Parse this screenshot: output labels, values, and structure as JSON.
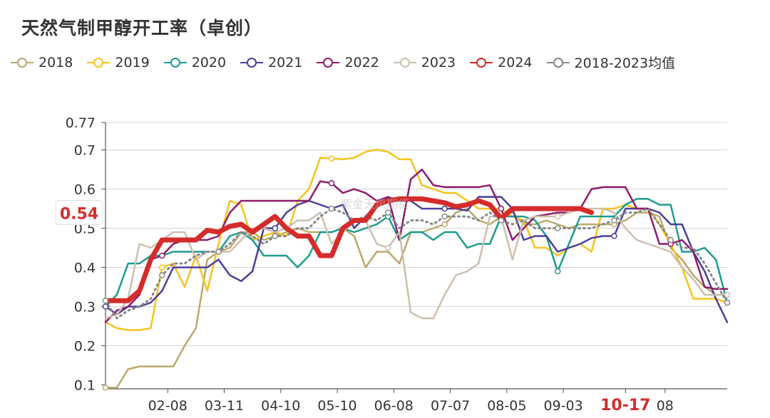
{
  "title": "天然气制甲醇开工率（卓创）",
  "chart_data": {
    "type": "line",
    "title": "天然气制甲醇开工率（卓创）",
    "ylim": [
      0.09,
      0.77
    ],
    "y_ticks": [
      0.1,
      0.2,
      0.3,
      0.4,
      0.5,
      0.6,
      0.7,
      0.77
    ],
    "y_tick_labels": [
      "0.1",
      "0.2",
      "0.3",
      "0.4",
      "0.5",
      "0.6",
      "0.7",
      "0.77"
    ],
    "x_tick_labels": [
      "02-08",
      "03-11",
      "04-10",
      "05-10",
      "06-08",
      "07-07",
      "08-05",
      "09-03",
      "10-17",
      "08"
    ],
    "x_tick_positions": [
      5.5,
      10.5,
      15.5,
      20.5,
      25.5,
      30.5,
      35.5,
      40.5,
      46,
      49.5
    ],
    "x_highlight_index": 8,
    "x_count": 56,
    "tooltip_value": "0.54",
    "series": [
      {
        "name": "2018",
        "color": "#b9a96c",
        "width": 2.5,
        "values": [
          0.093,
          0.093,
          0.14,
          0.147,
          0.147,
          0.147,
          0.147,
          0.2,
          0.245,
          0.42,
          0.44,
          0.45,
          0.49,
          0.49,
          0.47,
          0.48,
          0.49,
          0.5,
          0.49,
          0.49,
          0.49,
          0.5,
          0.48,
          0.4,
          0.44,
          0.44,
          0.41,
          0.49,
          0.49,
          0.5,
          0.51,
          0.54,
          0.55,
          0.52,
          0.51,
          0.53,
          0.54,
          0.51,
          0.51,
          0.52,
          0.51,
          0.5,
          0.51,
          0.51,
          0.51,
          0.51,
          0.52,
          0.54,
          0.54,
          0.53,
          0.45,
          0.42,
          0.38,
          0.35,
          0.33,
          0.33
        ]
      },
      {
        "name": "2019",
        "color": "#f6c21d",
        "width": 2.5,
        "values": [
          0.26,
          0.245,
          0.24,
          0.24,
          0.245,
          0.4,
          0.41,
          0.35,
          0.43,
          0.34,
          0.46,
          0.57,
          0.56,
          0.47,
          0.48,
          0.49,
          0.48,
          0.57,
          0.6,
          0.68,
          0.678,
          0.676,
          0.68,
          0.695,
          0.701,
          0.695,
          0.676,
          0.676,
          0.61,
          0.6,
          0.59,
          0.59,
          0.57,
          0.55,
          0.55,
          0.55,
          0.53,
          0.52,
          0.45,
          0.45,
          0.43,
          0.45,
          0.46,
          0.44,
          0.55,
          0.55,
          0.56,
          0.55,
          0.55,
          0.51,
          0.46,
          0.4,
          0.32,
          0.32,
          0.32,
          0.31
        ]
      },
      {
        "name": "2020",
        "color": "#1c9b8f",
        "width": 2.5,
        "values": [
          0.3,
          0.33,
          0.41,
          0.41,
          0.43,
          0.43,
          0.44,
          0.44,
          0.44,
          0.44,
          0.44,
          0.48,
          0.49,
          0.47,
          0.43,
          0.43,
          0.43,
          0.4,
          0.43,
          0.49,
          0.49,
          0.5,
          0.49,
          0.5,
          0.51,
          0.53,
          0.47,
          0.49,
          0.49,
          0.47,
          0.49,
          0.49,
          0.45,
          0.46,
          0.46,
          0.53,
          0.53,
          0.53,
          0.52,
          0.48,
          0.39,
          0.46,
          0.53,
          0.53,
          0.53,
          0.53,
          0.56,
          0.575,
          0.575,
          0.56,
          0.56,
          0.44,
          0.44,
          0.45,
          0.42,
          0.31
        ]
      },
      {
        "name": "2021",
        "color": "#4b3f9a",
        "width": 2.5,
        "values": [
          0.3,
          0.28,
          0.3,
          0.3,
          0.31,
          0.34,
          0.4,
          0.4,
          0.4,
          0.4,
          0.42,
          0.38,
          0.365,
          0.39,
          0.5,
          0.5,
          0.54,
          0.56,
          0.57,
          0.56,
          0.55,
          0.56,
          0.5,
          0.53,
          0.56,
          0.58,
          0.57,
          0.57,
          0.55,
          0.55,
          0.55,
          0.55,
          0.545,
          0.58,
          0.58,
          0.58,
          0.55,
          0.47,
          0.48,
          0.48,
          0.44,
          0.45,
          0.46,
          0.475,
          0.48,
          0.48,
          0.55,
          0.55,
          0.55,
          0.54,
          0.51,
          0.51,
          0.44,
          0.39,
          0.32,
          0.26
        ]
      },
      {
        "name": "2022",
        "color": "#8e1c6b",
        "width": 2.5,
        "values": [
          0.26,
          0.29,
          0.3,
          0.33,
          0.42,
          0.43,
          0.46,
          0.47,
          0.47,
          0.47,
          0.48,
          0.54,
          0.57,
          0.57,
          0.57,
          0.57,
          0.57,
          0.57,
          0.57,
          0.62,
          0.615,
          0.59,
          0.6,
          0.59,
          0.57,
          0.58,
          0.47,
          0.625,
          0.65,
          0.61,
          0.605,
          0.605,
          0.605,
          0.605,
          0.61,
          0.55,
          0.47,
          0.5,
          0.53,
          0.535,
          0.54,
          0.54,
          0.55,
          0.6,
          0.605,
          0.605,
          0.605,
          0.55,
          0.55,
          0.46,
          0.46,
          0.47,
          0.44,
          0.35,
          0.345,
          0.345
        ]
      },
      {
        "name": "2023",
        "color": "#cdbfad",
        "width": 2.5,
        "values": [
          0.27,
          0.28,
          0.32,
          0.46,
          0.45,
          0.47,
          0.49,
          0.49,
          0.42,
          0.44,
          0.44,
          0.44,
          0.47,
          0.5,
          0.5,
          0.49,
          0.5,
          0.52,
          0.52,
          0.54,
          0.46,
          0.49,
          0.52,
          0.52,
          0.46,
          0.45,
          0.49,
          0.285,
          0.27,
          0.27,
          0.33,
          0.38,
          0.39,
          0.41,
          0.53,
          0.53,
          0.42,
          0.52,
          0.53,
          0.53,
          0.53,
          0.54,
          0.55,
          0.55,
          0.55,
          0.54,
          0.5,
          0.47,
          0.46,
          0.45,
          0.44,
          0.4,
          0.37,
          0.33,
          0.33,
          0.33
        ]
      },
      {
        "name": "2024",
        "color": "#d62b2b",
        "width": 7,
        "values": [
          0.315,
          0.315,
          0.315,
          0.34,
          0.42,
          0.47,
          0.47,
          0.47,
          0.47,
          0.495,
          0.49,
          0.505,
          0.51,
          0.49,
          0.51,
          0.53,
          0.5,
          0.48,
          0.48,
          0.43,
          0.43,
          0.5,
          0.52,
          0.52,
          0.56,
          0.57,
          0.575,
          0.575,
          0.575,
          0.57,
          0.565,
          0.555,
          0.56,
          0.57,
          0.56,
          0.525,
          0.55,
          0.55,
          0.55,
          0.55,
          0.55,
          0.55,
          0.55,
          0.54
        ]
      },
      {
        "name": "2018-2023均值",
        "color": "#888888",
        "width": 3,
        "dash": "2 5",
        "values": [
          0.315,
          0.27,
          0.29,
          0.3,
          0.32,
          0.38,
          0.41,
          0.41,
          0.43,
          0.44,
          0.44,
          0.46,
          0.49,
          0.48,
          0.46,
          0.48,
          0.48,
          0.5,
          0.5,
          0.53,
          0.55,
          0.54,
          0.52,
          0.53,
          0.52,
          0.54,
          0.5,
          0.52,
          0.52,
          0.51,
          0.53,
          0.53,
          0.53,
          0.52,
          0.54,
          0.52,
          0.51,
          0.52,
          0.5,
          0.5,
          0.5,
          0.5,
          0.5,
          0.5,
          0.51,
          0.52,
          0.54,
          0.54,
          0.55,
          0.51,
          0.47,
          0.45,
          0.45,
          0.41,
          0.36,
          0.31
        ]
      }
    ]
  }
}
